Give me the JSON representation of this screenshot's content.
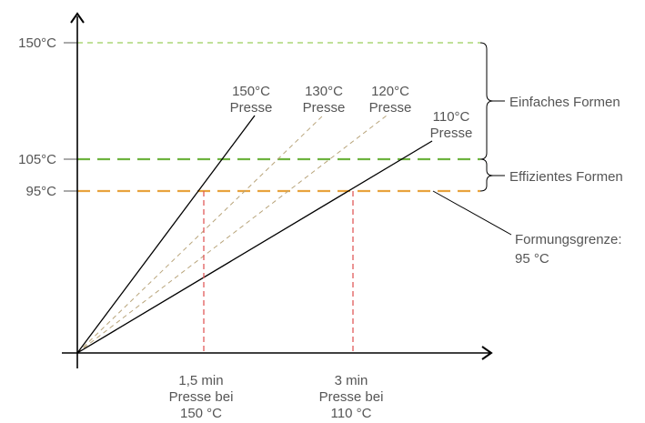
{
  "y_labels": {
    "t150": "150°C",
    "t105": "105°C",
    "t95": "95°C"
  },
  "press_labels": [
    {
      "temp": "150°C",
      "word": "Presse"
    },
    {
      "temp": "130°C",
      "word": "Presse"
    },
    {
      "temp": "120°C",
      "word": "Presse"
    },
    {
      "temp": "110°C",
      "word": "Presse"
    }
  ],
  "ranges": {
    "easy": "Einfaches Formen",
    "efficient": "Effizientes Formen"
  },
  "limit": {
    "line1": "Formungsgrenze:",
    "line2": "95 °C"
  },
  "times": [
    {
      "line1": "1,5 min",
      "line2": "Presse bei",
      "line3": "150 °C"
    },
    {
      "line1": "3 min",
      "line2": "Presse bei",
      "line3": "110 °C"
    }
  ],
  "colors": {
    "t150_line": "#9acd5a",
    "t105_line": "#6db33f",
    "t95_line": "#e8a33d",
    "press_solid": "#000000",
    "press_dashed": "#b8a47a",
    "time_marker": "#e05a5a",
    "text": "#555555"
  }
}
